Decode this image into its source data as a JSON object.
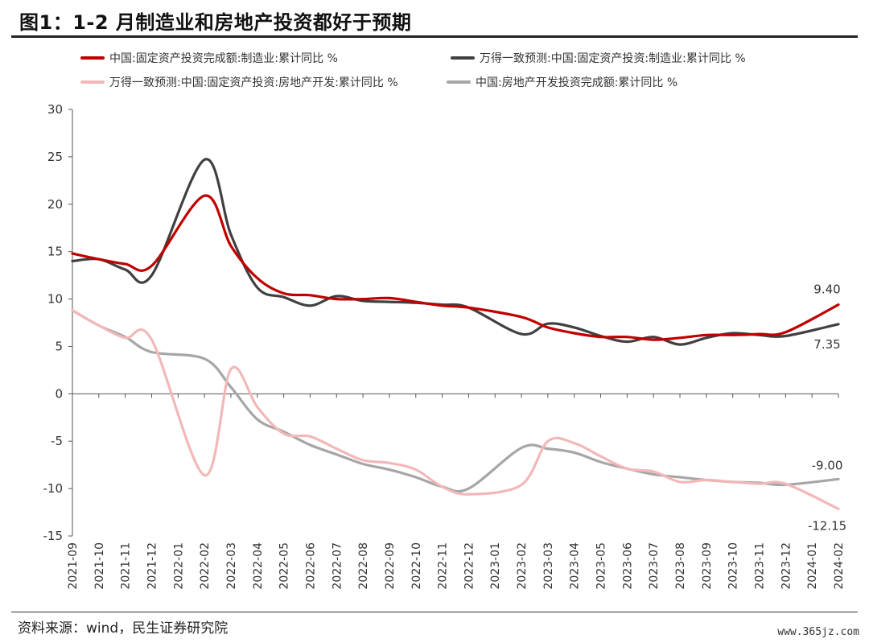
{
  "header": {
    "title": "图1：1-2 月制造业和房地产投资都好于预期"
  },
  "footer": {
    "source": "资料来源：wind，民生证券研究院",
    "watermark": "www.365jz.com"
  },
  "chart_data": {
    "type": "line",
    "title": "图1：1-2 月制造业和房地产投资都好于预期",
    "xlabel": "",
    "ylabel": "",
    "ylim": [
      -15,
      30
    ],
    "yticks": [
      -15,
      -10,
      -5,
      0,
      5,
      10,
      15,
      20,
      25,
      30
    ],
    "grid": false,
    "legend_position": "top",
    "categories": [
      "2021-09",
      "2021-10",
      "2021-11",
      "2021-12",
      "2022-01",
      "2022-02",
      "2022-03",
      "2022-04",
      "2022-05",
      "2022-06",
      "2022-07",
      "2022-08",
      "2022-09",
      "2022-10",
      "2022-11",
      "2022-12",
      "2023-01",
      "2023-02",
      "2023-03",
      "2023-04",
      "2023-05",
      "2023-06",
      "2023-07",
      "2023-08",
      "2023-09",
      "2023-10",
      "2023-11",
      "2023-12",
      "2024-01",
      "2024-02"
    ],
    "series": [
      {
        "name": "中国:固定资产投资完成额:制造业:累计同比 %",
        "color": "#c00000",
        "width": 3.2,
        "values": [
          14.8,
          14.2,
          13.7,
          13.5,
          null,
          20.9,
          15.6,
          12.2,
          10.6,
          10.4,
          10.0,
          10.0,
          10.1,
          9.7,
          9.3,
          9.1,
          null,
          8.1,
          7.0,
          6.4,
          6.0,
          6.0,
          5.7,
          5.9,
          6.2,
          6.2,
          6.3,
          6.5,
          null,
          9.4
        ]
      },
      {
        "name": "万得一致预测:中国:固定资产投资:制造业:累计同比 %",
        "color": "#404040",
        "width": 3.2,
        "values": [
          14.0,
          14.2,
          13.1,
          12.5,
          null,
          24.7,
          16.8,
          11.2,
          10.2,
          9.3,
          10.3,
          9.8,
          9.7,
          9.6,
          9.4,
          9.1,
          null,
          6.3,
          7.4,
          7.0,
          6.1,
          5.5,
          6.0,
          5.2,
          5.9,
          6.4,
          6.2,
          6.1,
          null,
          7.35
        ]
      },
      {
        "name": "万得一致预测:中国:固定资产投资:房地产开发:累计同比 %",
        "color": "#f2b8b8",
        "width": 3.2,
        "values": [
          8.8,
          7.2,
          5.9,
          5.7,
          null,
          -8.6,
          2.6,
          -1.4,
          -4.2,
          -4.5,
          -5.8,
          -7.0,
          -7.3,
          -8.0,
          -9.8,
          -10.6,
          null,
          -9.6,
          -5.0,
          -5.2,
          -6.6,
          -7.9,
          -8.2,
          -9.3,
          -9.1,
          -9.3,
          -9.5,
          -9.5,
          null,
          -12.15
        ]
      },
      {
        "name": "中国:房地产开发投资完成额:累计同比 %",
        "color": "#a6a6a6",
        "width": 3.2,
        "values": [
          8.8,
          7.2,
          6.0,
          4.4,
          null,
          3.7,
          0.7,
          -2.7,
          -4.0,
          -5.4,
          -6.4,
          -7.4,
          -8.0,
          -8.8,
          -9.8,
          -10.0,
          null,
          -5.7,
          -5.8,
          -6.2,
          -7.2,
          -7.9,
          -8.5,
          -8.8,
          -9.1,
          -9.3,
          -9.4,
          -9.6,
          null,
          -9.0
        ]
      }
    ],
    "annotations": [
      {
        "text": "9.40",
        "x": "2024-02",
        "y": 9.4,
        "series": 0
      },
      {
        "text": "7.35",
        "x": "2024-02",
        "y": 7.35,
        "series": 1
      },
      {
        "text": "-9.00",
        "x": "2024-02",
        "y": -9.0,
        "series": 3
      },
      {
        "text": "-12.15",
        "x": "2024-02",
        "y": -12.15,
        "series": 2
      }
    ]
  }
}
